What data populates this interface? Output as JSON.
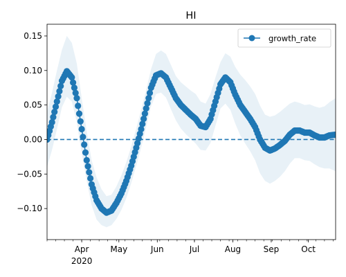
{
  "chart_data": {
    "type": "line",
    "title": "HI",
    "xlabel": "",
    "ylabel": "",
    "x_range": [
      "2020-03-04",
      "2020-10-23"
    ],
    "ylim": [
      -0.145,
      0.167
    ],
    "y_ticks": [
      0.15,
      0.1,
      0.05,
      0.0,
      -0.05,
      -0.1
    ],
    "y_tick_labels": [
      "0.15",
      "0.10",
      "0.05",
      "0.00",
      "−0.05",
      "−0.10"
    ],
    "x_major_ticks": [
      {
        "date": "2020-04-01",
        "label": "Apr"
      },
      {
        "date": "2020-05-01",
        "label": "May"
      },
      {
        "date": "2020-06-01",
        "label": "Jun"
      },
      {
        "date": "2020-07-01",
        "label": "Jul"
      },
      {
        "date": "2020-08-01",
        "label": "Aug"
      },
      {
        "date": "2020-09-01",
        "label": "Sep"
      },
      {
        "date": "2020-10-01",
        "label": "Oct"
      }
    ],
    "x_year_label": {
      "date": "2020-04-01",
      "label": "2020"
    },
    "reference_line": {
      "y": 0.0,
      "style": "dashed",
      "color": "#1f77b4"
    },
    "legend": {
      "position": "top-right"
    },
    "grid": false,
    "series": [
      {
        "name": "growth_rate",
        "color": "#1f77b4",
        "band_color": "#1f77b4",
        "band_opacity": 0.1,
        "x": [
          "2020-03-04",
          "2020-03-08",
          "2020-03-12",
          "2020-03-16",
          "2020-03-20",
          "2020-03-24",
          "2020-03-28",
          "2020-04-01",
          "2020-04-05",
          "2020-04-09",
          "2020-04-13",
          "2020-04-17",
          "2020-04-21",
          "2020-04-25",
          "2020-04-29",
          "2020-05-03",
          "2020-05-07",
          "2020-05-11",
          "2020-05-15",
          "2020-05-19",
          "2020-05-23",
          "2020-05-27",
          "2020-05-31",
          "2020-06-04",
          "2020-06-08",
          "2020-06-12",
          "2020-06-16",
          "2020-06-20",
          "2020-06-24",
          "2020-06-28",
          "2020-07-02",
          "2020-07-06",
          "2020-07-10",
          "2020-07-14",
          "2020-07-18",
          "2020-07-22",
          "2020-07-26",
          "2020-07-30",
          "2020-08-03",
          "2020-08-07",
          "2020-08-11",
          "2020-08-15",
          "2020-08-19",
          "2020-08-23",
          "2020-08-27",
          "2020-08-31",
          "2020-09-04",
          "2020-09-08",
          "2020-09-12",
          "2020-09-16",
          "2020-09-20",
          "2020-09-24",
          "2020-09-28",
          "2020-10-02",
          "2020-10-06",
          "2020-10-10",
          "2020-10-14",
          "2020-10-18",
          "2020-10-23"
        ],
        "y": [
          0.0,
          0.025,
          0.055,
          0.085,
          0.099,
          0.09,
          0.06,
          0.015,
          -0.03,
          -0.065,
          -0.088,
          -0.1,
          -0.106,
          -0.103,
          -0.092,
          -0.078,
          -0.06,
          -0.038,
          -0.012,
          0.015,
          0.045,
          0.075,
          0.093,
          0.096,
          0.09,
          0.075,
          0.06,
          0.05,
          0.043,
          0.036,
          0.03,
          0.02,
          0.018,
          0.03,
          0.055,
          0.08,
          0.09,
          0.083,
          0.065,
          0.05,
          0.04,
          0.03,
          0.018,
          0.0,
          -0.012,
          -0.016,
          -0.013,
          -0.008,
          -0.002,
          0.007,
          0.013,
          0.013,
          0.01,
          0.01,
          0.006,
          0.003,
          0.003,
          0.006,
          0.007
        ],
        "lower": [
          -0.04,
          -0.015,
          0.015,
          0.047,
          0.062,
          0.055,
          0.025,
          -0.02,
          -0.06,
          -0.095,
          -0.116,
          -0.124,
          -0.127,
          -0.124,
          -0.115,
          -0.102,
          -0.085,
          -0.063,
          -0.038,
          -0.012,
          0.018,
          0.048,
          0.066,
          0.068,
          0.061,
          0.044,
          0.028,
          0.016,
          0.008,
          0.001,
          -0.006,
          -0.015,
          -0.016,
          -0.005,
          0.02,
          0.045,
          0.052,
          0.043,
          0.023,
          0.006,
          -0.006,
          -0.017,
          -0.03,
          -0.049,
          -0.06,
          -0.064,
          -0.06,
          -0.054,
          -0.046,
          -0.035,
          -0.027,
          -0.027,
          -0.03,
          -0.031,
          -0.036,
          -0.04,
          -0.042,
          -0.042,
          -0.046
        ],
        "upper": [
          0.04,
          0.068,
          0.1,
          0.13,
          0.15,
          0.14,
          0.11,
          0.06,
          0.012,
          -0.03,
          -0.055,
          -0.072,
          -0.082,
          -0.08,
          -0.068,
          -0.052,
          -0.033,
          -0.01,
          0.016,
          0.043,
          0.072,
          0.102,
          0.124,
          0.129,
          0.124,
          0.108,
          0.092,
          0.083,
          0.077,
          0.071,
          0.066,
          0.055,
          0.052,
          0.066,
          0.09,
          0.112,
          0.125,
          0.12,
          0.105,
          0.094,
          0.086,
          0.077,
          0.066,
          0.049,
          0.036,
          0.033,
          0.035,
          0.04,
          0.046,
          0.052,
          0.055,
          0.053,
          0.05,
          0.051,
          0.048,
          0.046,
          0.048,
          0.054,
          0.06
        ]
      }
    ]
  }
}
